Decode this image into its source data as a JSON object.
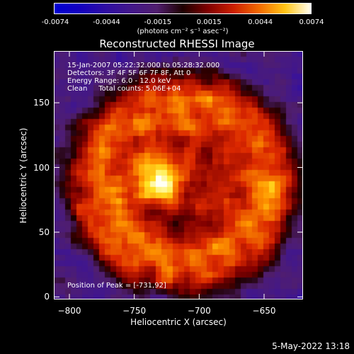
{
  "colorbar": {
    "ticks": [
      "-0.0074",
      "-0.0044",
      "-0.0015",
      "0.0015",
      "0.0044",
      "0.0074"
    ],
    "unit_label": "(photons cm⁻² s⁻¹ asec⁻²)",
    "range": [
      -0.0074,
      0.0074
    ]
  },
  "annotations": {
    "time_range": "15-Jan-2007 05:22:32.000 to 05:28:32.000",
    "detectors": "Detectors: 3F 4F 5F 6F 7F 8F, Att 0",
    "energy": "Energy Range: 6.0 - 12.0 keV",
    "clean": "Clean     Total counts: 5.06E+04",
    "peak": "Position of Peak = [-731,92]"
  },
  "footer": {
    "date_stamp": "5-May-2022 13:18"
  },
  "chart_data": {
    "type": "heatmap",
    "title": "Reconstructed RHESSI Image",
    "xlabel": "Heliocentric X (arcsec)",
    "ylabel": "Heliocentric Y (arcsec)",
    "xlim": [
      -812,
      -620
    ],
    "ylim": [
      -2,
      190
    ],
    "x_ticks": [
      -800,
      -750,
      -700,
      -650
    ],
    "x_tick_labels": [
      "−800",
      "−750",
      "−700",
      "−650"
    ],
    "y_ticks": [
      0,
      50,
      100,
      150
    ],
    "y_tick_labels": [
      "0",
      "50",
      "100",
      "150"
    ],
    "peak": {
      "x": -731,
      "y": 92,
      "value": 0.0074
    },
    "colormap": "rhessi-blue-purple-red-yellow-white",
    "grid": false
  }
}
